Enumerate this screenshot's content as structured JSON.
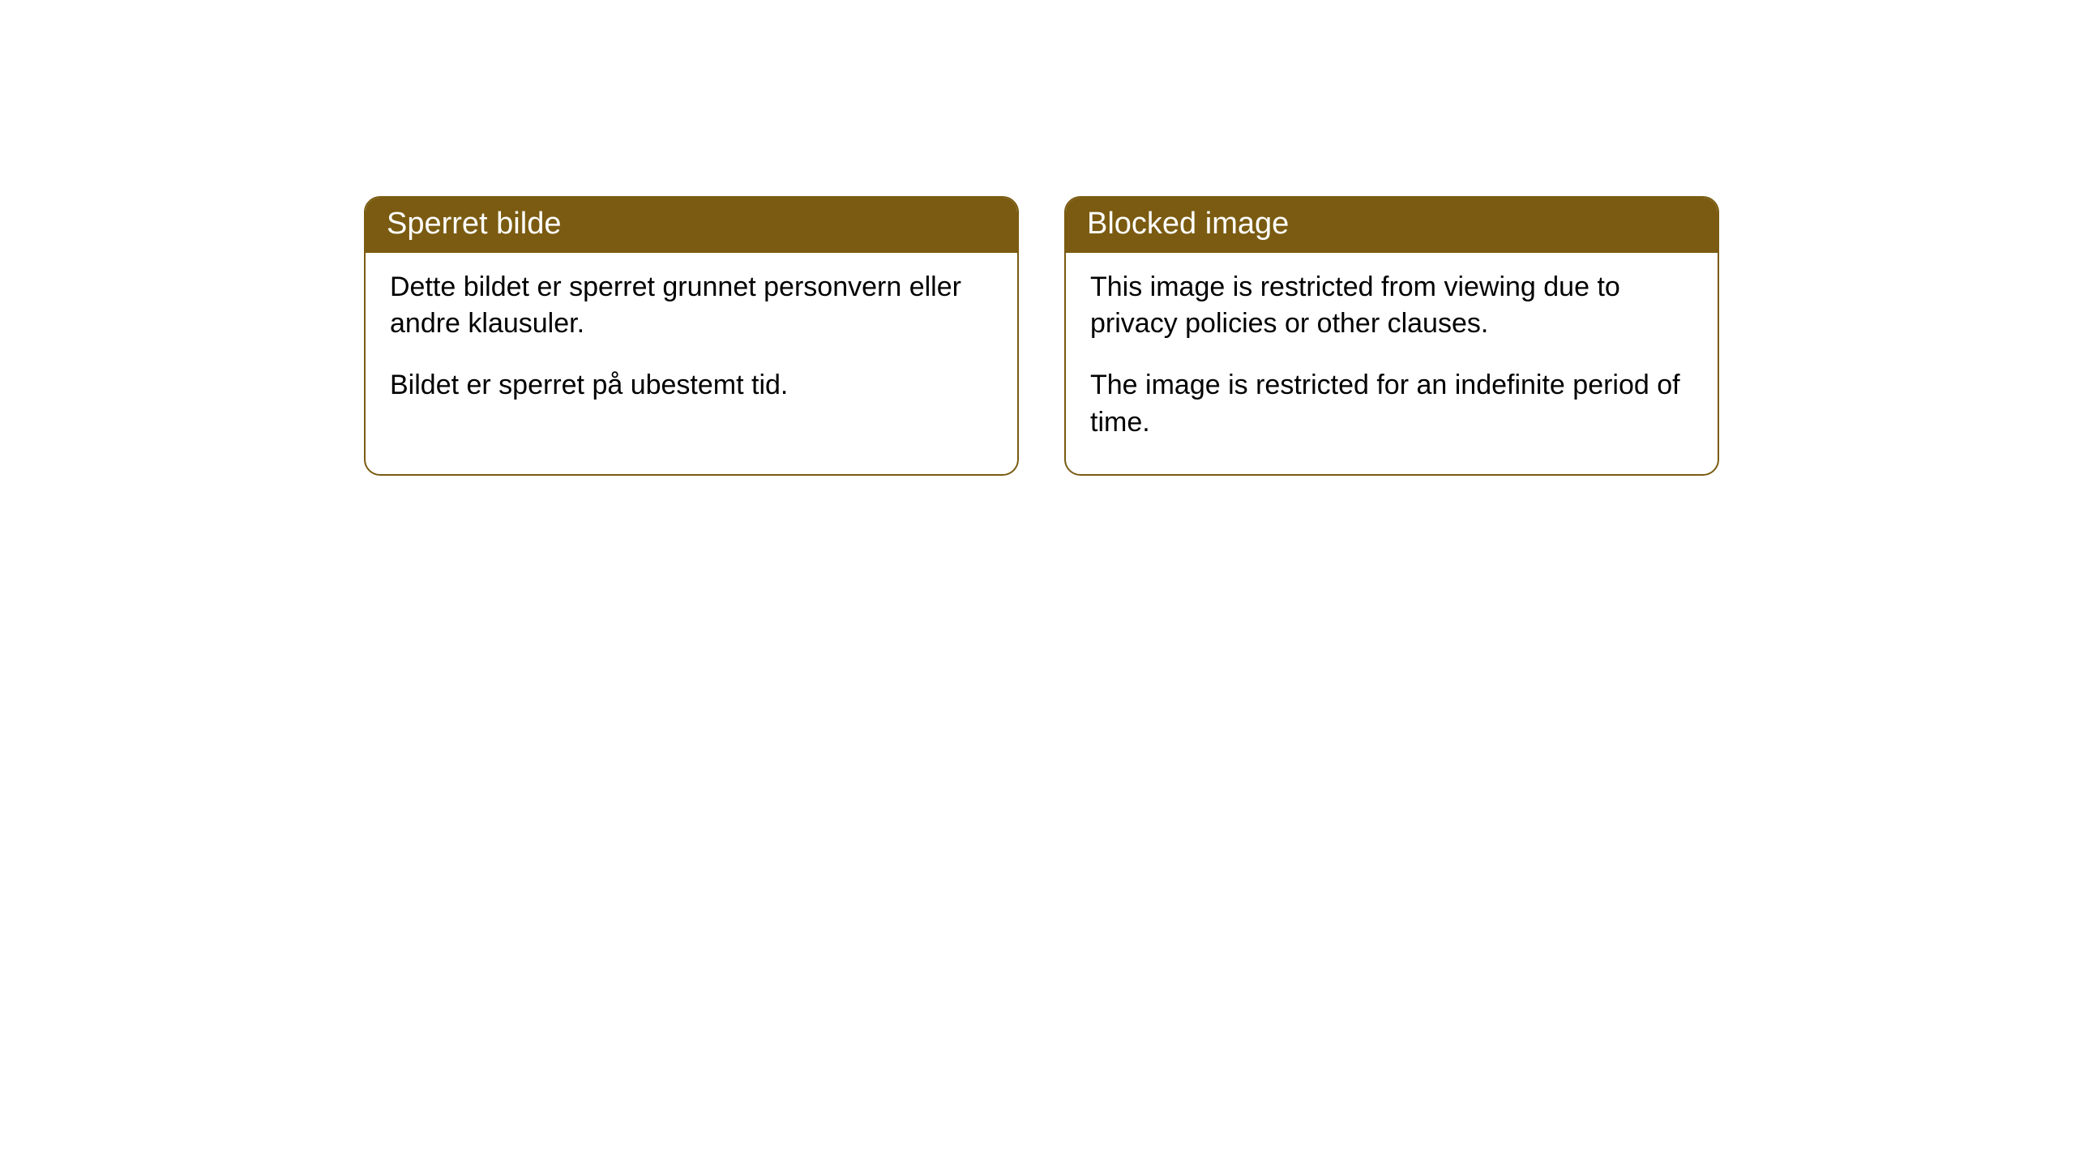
{
  "cards": [
    {
      "header": "Sperret bilde",
      "paragraph1": "Dette bildet er sperret grunnet personvern eller andre klausuler.",
      "paragraph2": "Bildet er sperret på ubestemt tid."
    },
    {
      "header": "Blocked image",
      "paragraph1": "This image is restricted from viewing due to privacy policies or other clauses.",
      "paragraph2": "The image is restricted for an indefinite period of time."
    }
  ],
  "style": {
    "header_bg_color": "#7a5b11",
    "header_text_color": "#ffffff",
    "border_color": "#7a5b11",
    "body_text_color": "#000000",
    "background_color": "#ffffff",
    "header_fontsize": 38,
    "body_fontsize": 34,
    "border_radius": 20
  }
}
